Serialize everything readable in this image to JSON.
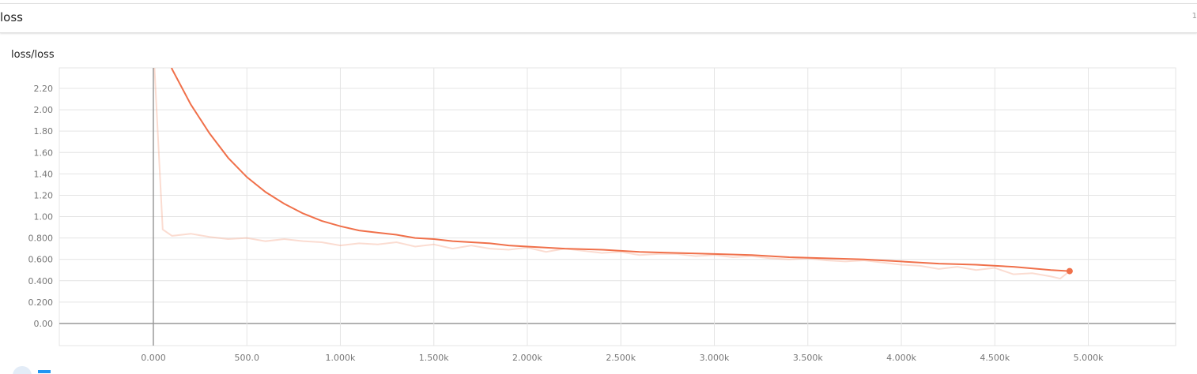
{
  "header": {
    "title": "loss",
    "right_text": "1"
  },
  "chart_data": {
    "type": "line",
    "title": "loss/loss",
    "xlim": [
      -503,
      5467
    ],
    "ylim": [
      -0.207,
      2.392
    ],
    "xticks": [
      {
        "value": 0,
        "label": "0.000"
      },
      {
        "value": 500,
        "label": "500.0"
      },
      {
        "value": 1000,
        "label": "1.000k"
      },
      {
        "value": 1500,
        "label": "1.500k"
      },
      {
        "value": 2000,
        "label": "2.000k"
      },
      {
        "value": 2500,
        "label": "2.500k"
      },
      {
        "value": 3000,
        "label": "3.000k"
      },
      {
        "value": 3500,
        "label": "3.500k"
      },
      {
        "value": 4000,
        "label": "4.000k"
      },
      {
        "value": 4500,
        "label": "4.500k"
      },
      {
        "value": 5000,
        "label": "5.000k"
      }
    ],
    "yticks": [
      {
        "value": 0,
        "label": "0.00"
      },
      {
        "value": 0.2,
        "label": "0.200"
      },
      {
        "value": 0.4,
        "label": "0.400"
      },
      {
        "value": 0.6,
        "label": "0.600"
      },
      {
        "value": 0.8,
        "label": "0.800"
      },
      {
        "value": 1,
        "label": "1.00"
      },
      {
        "value": 1.2,
        "label": "1.20"
      },
      {
        "value": 1.4,
        "label": "1.40"
      },
      {
        "value": 1.6,
        "label": "1.60"
      },
      {
        "value": 1.8,
        "label": "1.80"
      },
      {
        "value": 2,
        "label": "2.00"
      },
      {
        "value": 2.2,
        "label": "2.20"
      }
    ],
    "grid": true,
    "series": [
      {
        "color": "#f4a78c",
        "opacity": 0.4,
        "x": [
          0,
          50,
          100,
          200,
          300,
          400,
          500,
          600,
          700,
          800,
          900,
          1000,
          1100,
          1200,
          1300,
          1400,
          1500,
          1600,
          1700,
          1800,
          1900,
          2000,
          2100,
          2200,
          2300,
          2400,
          2500,
          2600,
          2700,
          2800,
          2900,
          3000,
          3100,
          3200,
          3300,
          3400,
          3500,
          3600,
          3700,
          3800,
          3900,
          4000,
          4100,
          4200,
          4300,
          4400,
          4500,
          4600,
          4700,
          4800,
          4850,
          4900
        ],
        "values": [
          2.6,
          0.88,
          0.82,
          0.84,
          0.81,
          0.79,
          0.8,
          0.77,
          0.79,
          0.77,
          0.76,
          0.73,
          0.75,
          0.74,
          0.76,
          0.72,
          0.74,
          0.7,
          0.73,
          0.7,
          0.69,
          0.71,
          0.67,
          0.7,
          0.68,
          0.66,
          0.67,
          0.64,
          0.65,
          0.65,
          0.63,
          0.64,
          0.62,
          0.63,
          0.61,
          0.6,
          0.61,
          0.59,
          0.58,
          0.59,
          0.57,
          0.55,
          0.54,
          0.51,
          0.53,
          0.5,
          0.52,
          0.46,
          0.47,
          0.44,
          0.42,
          0.49
        ]
      },
      {
        "color": "#f0704a",
        "opacity": 1,
        "x": [
          50,
          100,
          200,
          300,
          400,
          500,
          600,
          700,
          800,
          900,
          1000,
          1100,
          1200,
          1300,
          1400,
          1500,
          1600,
          1700,
          1800,
          1900,
          2000,
          2200,
          2400,
          2600,
          2800,
          3000,
          3200,
          3400,
          3600,
          3800,
          4000,
          4200,
          4400,
          4600,
          4800,
          4900
        ],
        "values": [
          2.7,
          2.38,
          2.05,
          1.78,
          1.55,
          1.37,
          1.23,
          1.12,
          1.03,
          0.96,
          0.91,
          0.87,
          0.85,
          0.83,
          0.8,
          0.79,
          0.77,
          0.76,
          0.75,
          0.73,
          0.72,
          0.7,
          0.69,
          0.67,
          0.66,
          0.65,
          0.64,
          0.62,
          0.61,
          0.6,
          0.58,
          0.56,
          0.55,
          0.53,
          0.5,
          0.49
        ]
      }
    ]
  }
}
